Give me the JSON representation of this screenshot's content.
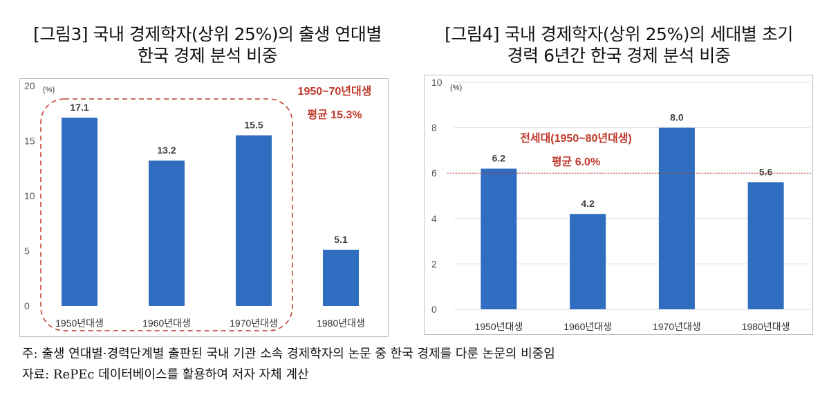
{
  "charts": [
    {
      "title_lines": [
        "[그림3] 국내 경제학자(상위 25%)의 출생 연대별",
        "한국 경제 분석 비중"
      ],
      "unit": "(%)",
      "callout": [
        "1950~70년대생",
        "평균 15.3%"
      ],
      "colors": {
        "bar": "#2e6dbf",
        "callout": "#c0392b",
        "axis_text": "#555555"
      }
    },
    {
      "title_lines": [
        "[그림4] 국내 경제학자(상위 25%)의 세대별 초기",
        "경력 6년간 한국 경제 분석 비중"
      ],
      "unit": "(%)",
      "callout": [
        "전세대(1950~80년대생)",
        "평균 6.0%"
      ],
      "colors": {
        "bar": "#2e6dbf",
        "callout": "#c0392b",
        "axis_text": "#555555"
      }
    }
  ],
  "notes": {
    "line1": "주: 출생 연대별·경력단계별 출판된 국내 기관 소속 경제학자의 논문 중 한국 경제를 다룬 논문의 비중임",
    "line2": "자료: RePEc 데이터베이스를 활용하여 저자 자체 계산"
  },
  "chart_data": [
    {
      "type": "bar",
      "categories": [
        "1950년대생",
        "1960년대생",
        "1970년대생",
        "1980년대생"
      ],
      "values": [
        17.1,
        13.2,
        15.5,
        5.1
      ],
      "data_labels": [
        "17.1",
        "13.2",
        "15.5",
        "5.1"
      ],
      "ylim": [
        0,
        20
      ],
      "yticks": [
        "0",
        "5",
        "10",
        "15",
        "20"
      ],
      "grid": false,
      "highlight_group": {
        "categories": [
          "1950년대생",
          "1960년대생",
          "1970년대생"
        ],
        "average": 15.3,
        "style": "dashed-rounded-box"
      }
    },
    {
      "type": "bar",
      "categories": [
        "1950년대생",
        "1960년대생",
        "1970년대생",
        "1980년대생"
      ],
      "values": [
        6.2,
        4.2,
        8.0,
        5.6
      ],
      "data_labels": [
        "6.2",
        "4.2",
        "8.0",
        "5.6"
      ],
      "ylim": [
        0,
        10
      ],
      "yticks": [
        "0",
        "2",
        "4",
        "6",
        "8",
        "10"
      ],
      "grid": true,
      "reference_line": {
        "value": 6.0,
        "style": "dotted",
        "color": "#c0392b"
      }
    }
  ]
}
